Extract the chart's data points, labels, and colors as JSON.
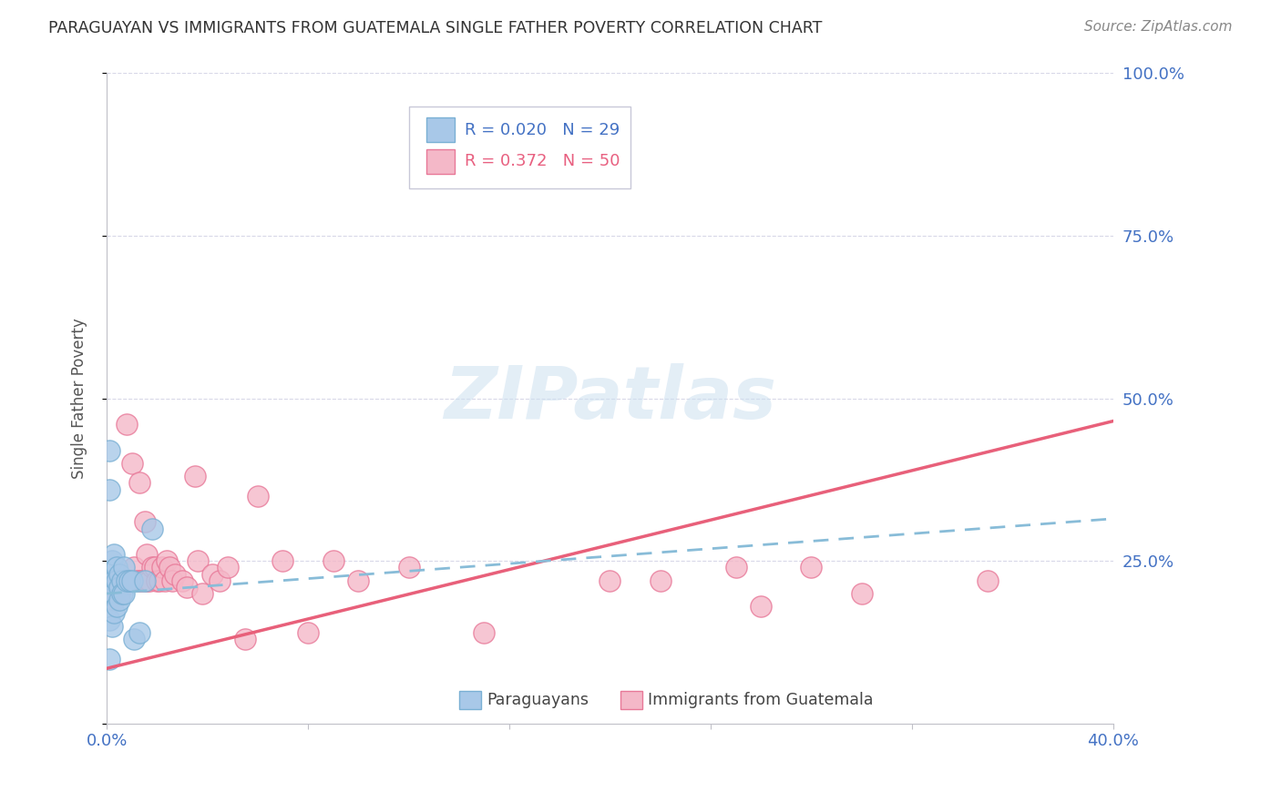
{
  "title": "PARAGUAYAN VS IMMIGRANTS FROM GUATEMALA SINGLE FATHER POVERTY CORRELATION CHART",
  "source": "Source: ZipAtlas.com",
  "ylabel": "Single Father Poverty",
  "xlim": [
    0.0,
    0.4
  ],
  "ylim": [
    0.0,
    1.0
  ],
  "yticks": [
    0.0,
    0.25,
    0.5,
    0.75,
    1.0
  ],
  "ytick_labels": [
    "",
    "25.0%",
    "50.0%",
    "75.0%",
    "100.0%"
  ],
  "xticks": [
    0.0,
    0.08,
    0.16,
    0.24,
    0.32,
    0.4
  ],
  "blue_color": "#a8c8e8",
  "blue_edge_color": "#7ab0d4",
  "pink_color": "#f4b8c8",
  "pink_edge_color": "#e87898",
  "blue_line_color": "#88bcd8",
  "pink_line_color": "#e8607a",
  "grid_color": "#d8d8e8",
  "axis_color": "#c0c0c8",
  "tick_label_color": "#4472c4",
  "ylabel_color": "#555555",
  "title_color": "#333333",
  "source_color": "#888888",
  "watermark_color": "#cce0f0",
  "watermark_alpha": 0.55,
  "blue_line_x": [
    0.0,
    0.4
  ],
  "blue_line_y": [
    0.2,
    0.315
  ],
  "pink_line_x": [
    0.0,
    0.4
  ],
  "pink_line_y": [
    0.085,
    0.465
  ],
  "paraguayan_x": [
    0.001,
    0.001,
    0.001,
    0.001,
    0.002,
    0.002,
    0.002,
    0.002,
    0.003,
    0.003,
    0.003,
    0.003,
    0.004,
    0.004,
    0.004,
    0.005,
    0.005,
    0.005,
    0.006,
    0.006,
    0.007,
    0.007,
    0.008,
    0.009,
    0.01,
    0.011,
    0.013,
    0.015,
    0.018
  ],
  "paraguayan_y": [
    0.42,
    0.36,
    0.16,
    0.1,
    0.25,
    0.22,
    0.2,
    0.15,
    0.26,
    0.22,
    0.2,
    0.17,
    0.24,
    0.22,
    0.18,
    0.23,
    0.21,
    0.19,
    0.22,
    0.2,
    0.24,
    0.2,
    0.22,
    0.22,
    0.22,
    0.13,
    0.14,
    0.22,
    0.3
  ],
  "guatemala_x": [
    0.002,
    0.003,
    0.004,
    0.005,
    0.007,
    0.008,
    0.009,
    0.01,
    0.011,
    0.012,
    0.013,
    0.013,
    0.014,
    0.015,
    0.016,
    0.016,
    0.017,
    0.018,
    0.019,
    0.02,
    0.021,
    0.022,
    0.023,
    0.024,
    0.025,
    0.026,
    0.027,
    0.03,
    0.032,
    0.035,
    0.036,
    0.038,
    0.042,
    0.045,
    0.048,
    0.055,
    0.06,
    0.07,
    0.08,
    0.09,
    0.1,
    0.12,
    0.15,
    0.2,
    0.22,
    0.25,
    0.26,
    0.28,
    0.3,
    0.35
  ],
  "guatemala_y": [
    0.2,
    0.19,
    0.22,
    0.2,
    0.22,
    0.46,
    0.22,
    0.4,
    0.24,
    0.22,
    0.37,
    0.22,
    0.22,
    0.31,
    0.22,
    0.26,
    0.22,
    0.24,
    0.24,
    0.22,
    0.22,
    0.24,
    0.22,
    0.25,
    0.24,
    0.22,
    0.23,
    0.22,
    0.21,
    0.38,
    0.25,
    0.2,
    0.23,
    0.22,
    0.24,
    0.13,
    0.35,
    0.25,
    0.14,
    0.25,
    0.22,
    0.24,
    0.14,
    0.22,
    0.22,
    0.24,
    0.18,
    0.24,
    0.2,
    0.22
  ],
  "legend_r1_text": "R = 0.020   N = 29",
  "legend_r2_text": "R = 0.372   N = 50",
  "bottom_legend_paraguayans": "Paraguayans",
  "bottom_legend_guatemala": "Immigrants from Guatemala"
}
